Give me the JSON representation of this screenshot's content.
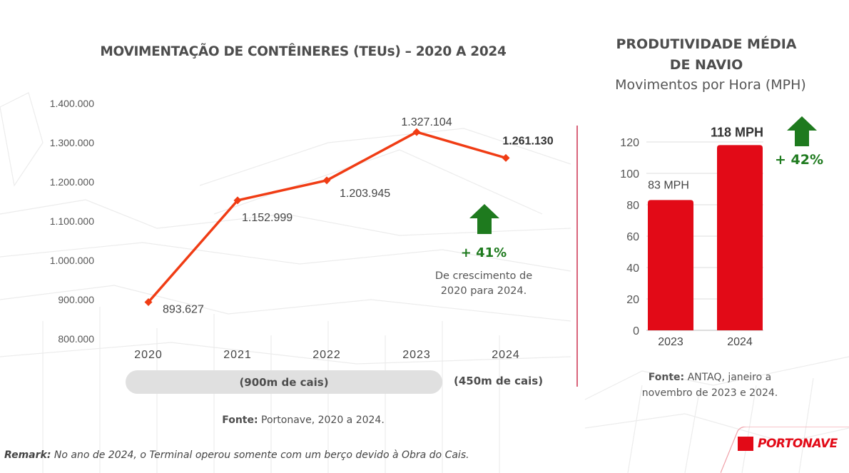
{
  "colors": {
    "line": "#f03c14",
    "bar": "#e20a17",
    "growth": "#1e7a1e",
    "divider": "#d9647a",
    "brand": "#e20a17"
  },
  "left": {
    "title": "MOVIMENTAÇÃO DE CONTÊINERES (TEUs) – 2020 A 2024",
    "growth_value": "+ 41%",
    "growth_desc_line1": "De crescimento de",
    "growth_desc_line2": "2020 para 2024.",
    "cais_900": "(900m de cais)",
    "cais_450": "(450m de cais)",
    "source_label": "Fonte:",
    "source_text": " Portonave, 2020 a 2024."
  },
  "right": {
    "title_line1": "PRODUTIVIDADE MÉDIA",
    "title_line2": "DE NAVIO",
    "subtitle": "Movimentos por Hora (MPH)",
    "growth_value": "+ 42%",
    "source_label": "Fonte:",
    "source_text_line1": " ANTAQ, janeiro a",
    "source_text_line2": "novembro de 2023 e 2024."
  },
  "remark": {
    "label": "Remark:",
    "text": " No ano de 2024, o Terminal operou somente com um berço devido à Obra do Cais."
  },
  "logo": {
    "text": "PORTONAVE"
  },
  "chart_data": [
    {
      "type": "line",
      "title": "MOVIMENTAÇÃO DE CONTÊINERES (TEUs) – 2020 A 2024",
      "xlabel": "",
      "ylabel": "TEUs",
      "categories": [
        "2020",
        "2021",
        "2022",
        "2023",
        "2024"
      ],
      "values": [
        893627,
        1152999,
        1203945,
        1327104,
        1261130
      ],
      "data_labels": [
        "893.627",
        "1.152.999",
        "1.203.945",
        "1.327.104",
        "1.261.130"
      ],
      "ylim": [
        800000,
        1400000
      ],
      "yticks": [
        800000,
        900000,
        1000000,
        1100000,
        1200000,
        1300000,
        1400000
      ],
      "ytick_labels": [
        "800.000",
        "900.000",
        "1.000.000",
        "1.100.000",
        "1.200.000",
        "1.300.000",
        "1.400.000"
      ],
      "grid": false,
      "legend": "none"
    },
    {
      "type": "bar",
      "title": "PRODUTIVIDADE MÉDIA DE NAVIO — Movimentos por Hora (MPH)",
      "xlabel": "",
      "ylabel": "MPH",
      "categories": [
        "2023",
        "2024"
      ],
      "values": [
        83,
        118
      ],
      "data_labels": [
        "83 MPH",
        "118 MPH"
      ],
      "ylim": [
        0,
        120
      ],
      "yticks": [
        0,
        20,
        40,
        60,
        80,
        100,
        120
      ],
      "ytick_labels": [
        "0",
        "20",
        "40",
        "60",
        "80",
        "100",
        "120"
      ],
      "grid": true,
      "legend": "none"
    }
  ]
}
